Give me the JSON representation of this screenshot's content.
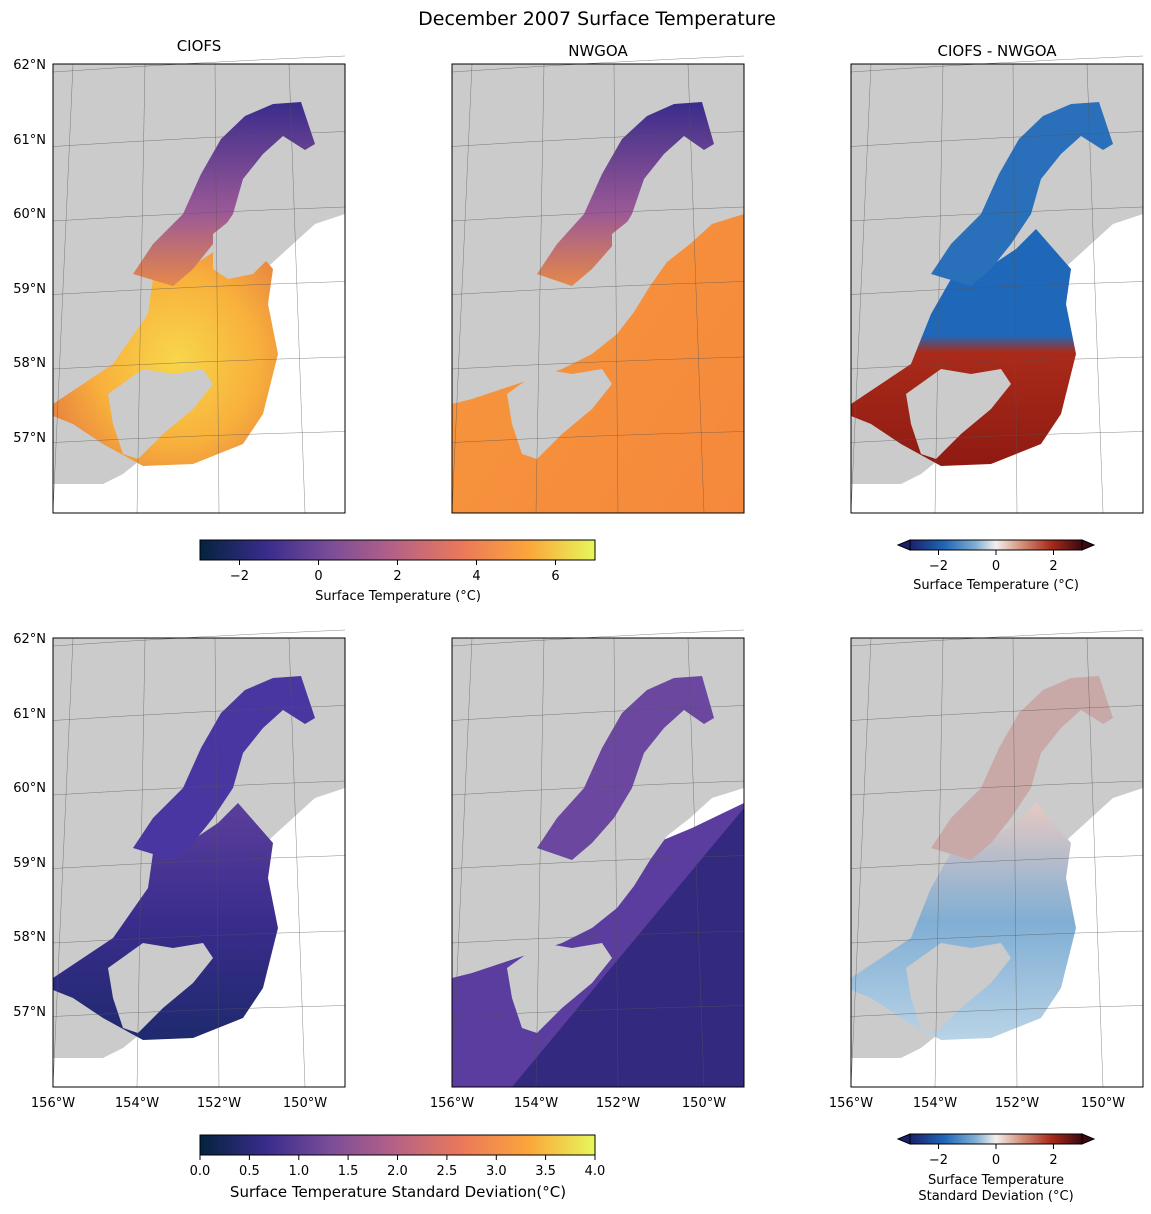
{
  "figure": {
    "title": "December 2007 Surface Temperature"
  },
  "panel_titles": [
    "CIOFS",
    "NWGOA",
    "CIOFS - NWGOA"
  ],
  "axes": {
    "lat_labels": [
      "62°N",
      "61°N",
      "60°N",
      "59°N",
      "58°N",
      "57°N"
    ],
    "lon_labels": [
      "156°W",
      "154°W",
      "152°W",
      "150°W"
    ]
  },
  "colorbars": {
    "mean": {
      "label": "Surface Temperature (°C)",
      "ticks": [
        "−2",
        "0",
        "2",
        "4",
        "6"
      ],
      "range": [
        -3,
        7
      ],
      "colormap": "thermal",
      "extend": "neither"
    },
    "mean_diff": {
      "label": "Surface Temperature (°C)",
      "ticks": [
        "−2",
        "0",
        "2"
      ],
      "range": [
        -3,
        3
      ],
      "colormap": "balance",
      "extend": "both"
    },
    "std": {
      "label": "Surface Temperature Standard Deviation(°C)",
      "ticks": [
        "0.0",
        "0.5",
        "1.0",
        "1.5",
        "2.0",
        "2.5",
        "3.0",
        "3.5",
        "4.0"
      ],
      "range": [
        0,
        4
      ],
      "colormap": "thermal",
      "extend": "neither"
    },
    "std_diff": {
      "label_line1": "Surface Temperature",
      "label_line2": "Standard Deviation (°C)",
      "ticks": [
        "−2",
        "0",
        "2"
      ],
      "range": [
        -3,
        3
      ],
      "colormap": "balance",
      "extend": "both"
    }
  },
  "colors": {
    "land": "#cbcbcb",
    "gridline": "#555555",
    "thermal_stops": [
      "#04233e",
      "#3a2c8c",
      "#7a4d98",
      "#b86285",
      "#ec7a58",
      "#fba53b",
      "#e7f75a"
    ],
    "balance_stops": [
      "#19216c",
      "#1f67b8",
      "#80aed4",
      "#f3efee",
      "#d39078",
      "#a92b1a",
      "#3c0911"
    ]
  }
}
